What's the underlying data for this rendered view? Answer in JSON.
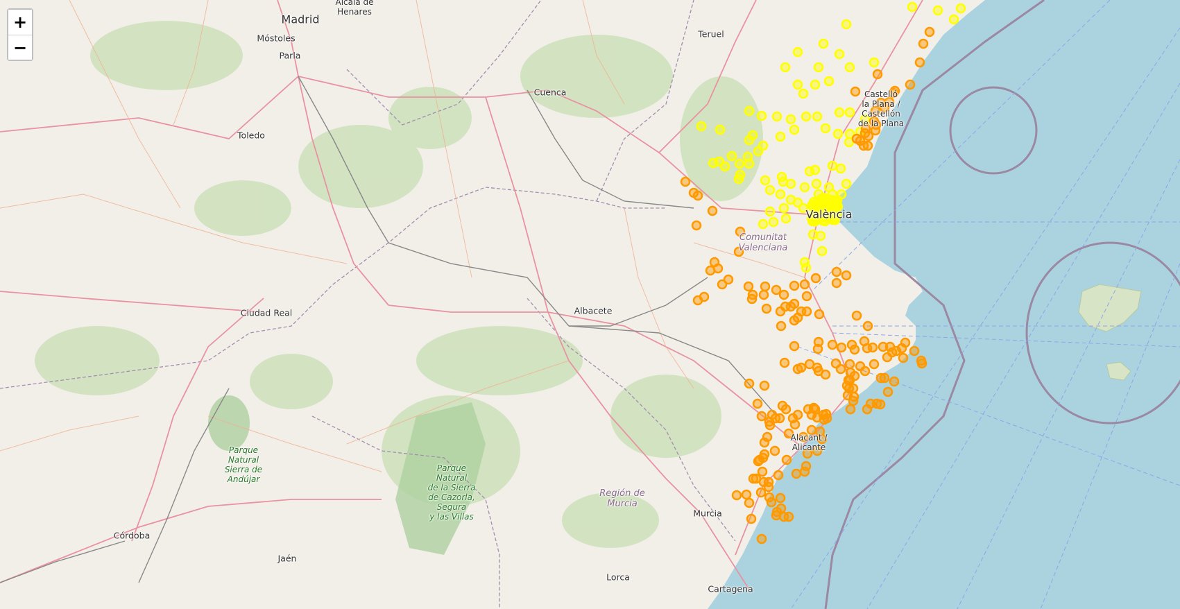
{
  "zoom": {
    "in_label": "+",
    "out_label": "−"
  },
  "colors": {
    "land": "#f2efe9",
    "sea": "#aad3df",
    "forest": "#c8dfb4",
    "road": "#e892a2",
    "marker_yellow": "#ffff00",
    "marker_orange": "#ff9900"
  },
  "labels": {
    "madrid": "Madrid",
    "alcala": "Alcalá de\nHenares",
    "mostoles": "Móstoles",
    "parla": "Parla",
    "toledo": "Toledo",
    "cuenca": "Cuenca",
    "teruel": "Teruel",
    "castellon": "Castelló\nla Plana /\nCastellón\nde la Plana",
    "valencia": "València",
    "comunitat": "Comunitat\nValenciana",
    "ciudad_real": "Ciudad Real",
    "albacete": "Albacete",
    "alicante": "Alacant /\nAlicante",
    "murcia": "Murcia",
    "region_murcia": "Región de\nMurcia",
    "lorca": "Lorca",
    "cartagena": "Cartagena",
    "cordoba": "Córdoba",
    "jaen": "Jaén",
    "parque_andujar": "Parque\nNatural\nSierra de\nAndújar",
    "parque_cazorla": "Parque\nNatural\nde la Sierra\nde Cazorla,\nSegura\ny las Villas"
  }
}
